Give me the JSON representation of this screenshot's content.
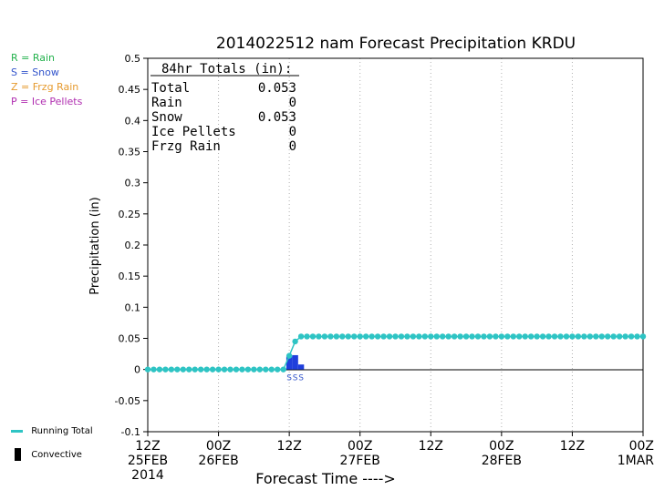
{
  "chart_data": {
    "type": "line",
    "title": "2014022512 nam Forecast Precipitation KRDU",
    "ylabel": "Precipitation (in)",
    "xlabel": "Forecast Time ---->",
    "ylim": [
      -0.1,
      0.5
    ],
    "yticks": [
      "0.5",
      "0.45",
      "0.4",
      "0.35",
      "0.3",
      "0.25",
      "0.2",
      "0.15",
      "0.1",
      "0.05",
      "0",
      "-0.05",
      "-0.1"
    ],
    "xticks": [
      {
        "hour": 0,
        "line1": "12Z",
        "line2": "25FEB",
        "line3": "2014"
      },
      {
        "hour": 12,
        "line1": "00Z",
        "line2": "26FEB"
      },
      {
        "hour": 24,
        "line1": "12Z",
        "line2": ""
      },
      {
        "hour": 36,
        "line1": "00Z",
        "line2": "27FEB"
      },
      {
        "hour": 48,
        "line1": "12Z",
        "line2": ""
      },
      {
        "hour": 60,
        "line1": "00Z",
        "line2": "28FEB"
      },
      {
        "hour": 72,
        "line1": "12Z",
        "line2": ""
      },
      {
        "hour": 84,
        "line1": "00Z",
        "line2": "1MAR"
      }
    ],
    "grid": true,
    "xrange_hours": [
      0,
      84
    ],
    "series": [
      {
        "name": "Running Total",
        "color": "#2ec4c4",
        "x_hours": [
          0,
          1,
          2,
          3,
          4,
          5,
          6,
          7,
          8,
          9,
          10,
          11,
          12,
          13,
          14,
          15,
          16,
          17,
          18,
          19,
          20,
          21,
          22,
          23,
          24,
          25,
          26,
          27,
          28,
          29,
          30,
          31,
          32,
          33,
          34,
          35,
          36,
          37,
          38,
          39,
          40,
          41,
          42,
          43,
          44,
          45,
          46,
          47,
          48,
          49,
          50,
          51,
          52,
          53,
          54,
          55,
          56,
          57,
          58,
          59,
          60,
          61,
          62,
          63,
          64,
          65,
          66,
          67,
          68,
          69,
          70,
          71,
          72,
          73,
          74,
          75,
          76,
          77,
          78,
          79,
          80,
          81,
          82,
          83,
          84
        ],
        "values": [
          0,
          0,
          0,
          0,
          0,
          0,
          0,
          0,
          0,
          0,
          0,
          0,
          0,
          0,
          0,
          0,
          0,
          0,
          0,
          0,
          0,
          0,
          0,
          0,
          0.022,
          0.045,
          0.053,
          0.053,
          0.053,
          0.053,
          0.053,
          0.053,
          0.053,
          0.053,
          0.053,
          0.053,
          0.053,
          0.053,
          0.053,
          0.053,
          0.053,
          0.053,
          0.053,
          0.053,
          0.053,
          0.053,
          0.053,
          0.053,
          0.053,
          0.053,
          0.053,
          0.053,
          0.053,
          0.053,
          0.053,
          0.053,
          0.053,
          0.053,
          0.053,
          0.053,
          0.053,
          0.053,
          0.053,
          0.053,
          0.053,
          0.053,
          0.053,
          0.053,
          0.053,
          0.053,
          0.053,
          0.053,
          0.053,
          0.053,
          0.053,
          0.053,
          0.053,
          0.053,
          0.053,
          0.053,
          0.053,
          0.053,
          0.053,
          0.053,
          0.053
        ]
      }
    ],
    "hourly_bars": {
      "color": "#1f3fdc",
      "items": [
        {
          "hour": 24,
          "value": 0.021
        },
        {
          "hour": 25,
          "value": 0.023
        },
        {
          "hour": 26,
          "value": 0.008
        }
      ]
    },
    "ptype_labels": [
      {
        "hour": 24,
        "text": "S"
      },
      {
        "hour": 25,
        "text": "S"
      },
      {
        "hour": 26,
        "text": "S"
      }
    ]
  },
  "totals": {
    "header": "84hr Totals (in):",
    "rows": [
      {
        "label": "Total",
        "value": "0.053"
      },
      {
        "label": "Rain",
        "value": "0"
      },
      {
        "label": "Snow",
        "value": "0.053"
      },
      {
        "label": "Ice Pellets",
        "value": "0"
      },
      {
        "label": "Frzg Rain",
        "value": "0"
      }
    ]
  },
  "ptype_legend": [
    {
      "text": "R = Rain",
      "color": "#22b14c"
    },
    {
      "text": "S = Snow",
      "color": "#3355cc"
    },
    {
      "text": "Z = Frzg Rain",
      "color": "#e69a2e"
    },
    {
      "text": "P = Ice Pellets",
      "color": "#b02eb0"
    }
  ],
  "bottom_legend": {
    "running_total": "Running Total",
    "convective": "Convective"
  }
}
